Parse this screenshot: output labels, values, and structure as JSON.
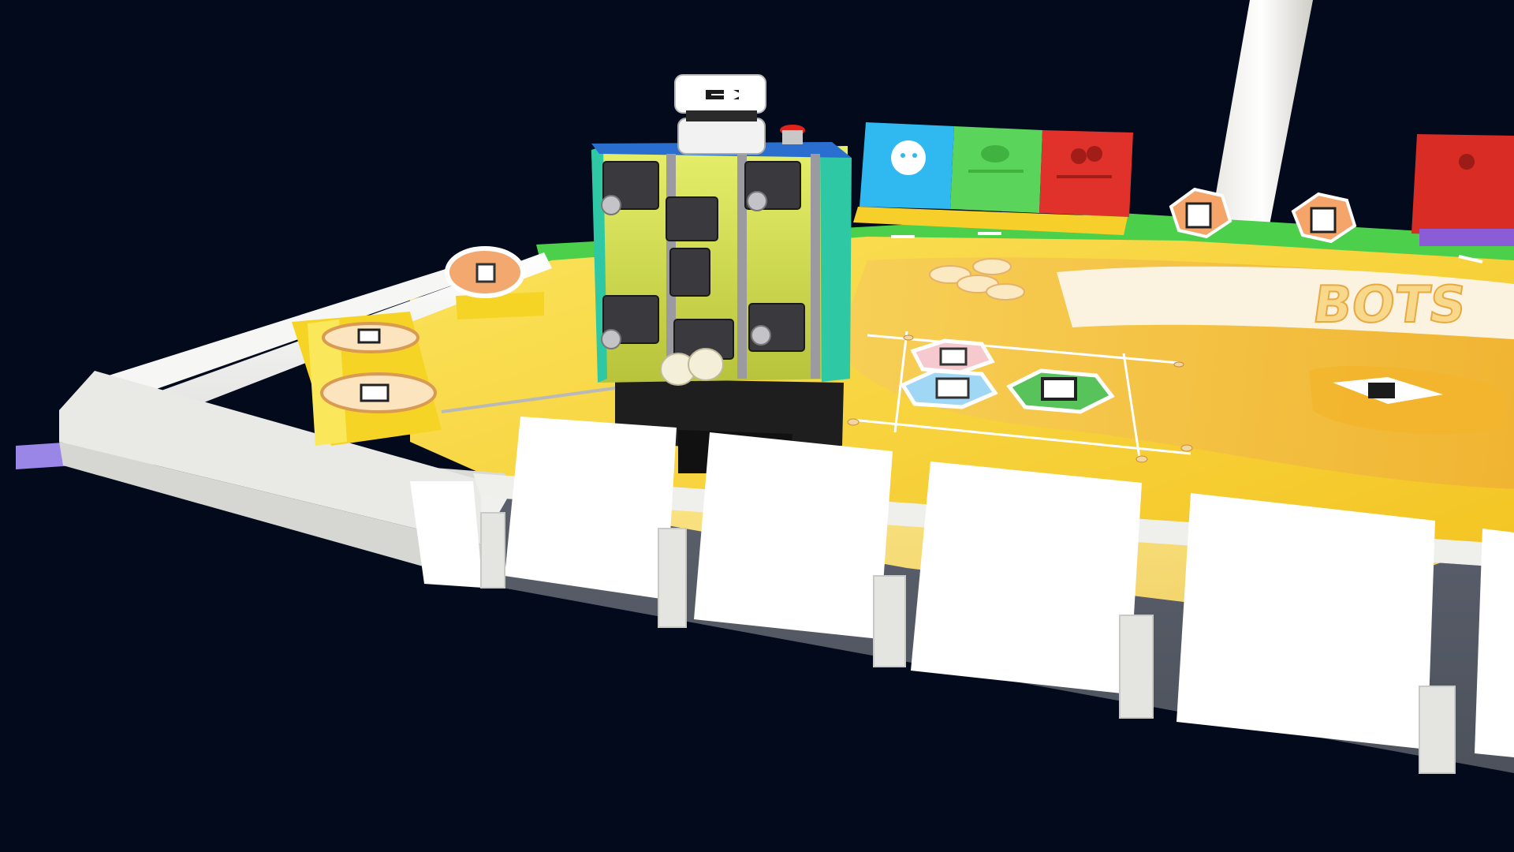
{
  "scene": {
    "background_color": "#020a1c",
    "board": {
      "field_colors": {
        "yellow": "#f9dc35",
        "orange": "#f6c343",
        "white_border": "#f2f2f0",
        "green_strip": "#4cd04c",
        "purple_marker": "#9a86e6"
      },
      "logo_text": "BOTS"
    },
    "signs": [
      {
        "name": "blue-team-sign",
        "color": "#30b8f0",
        "icon": "robot-face-icon"
      },
      {
        "name": "green-team-sign",
        "color": "#5ad45a",
        "icon": "leaf-icon"
      },
      {
        "name": "red-team-sign",
        "color": "#e0312b",
        "icon": "cherry-icon"
      },
      {
        "name": "red-team-sign-far",
        "color": "#d82c25",
        "icon": "cherry-icon"
      }
    ],
    "robot": {
      "top_icon": "arrow-right-icon",
      "body_color": "#d8e64a",
      "frame_color": "#2ec8a5",
      "base_color": "#1a1a1a"
    }
  }
}
